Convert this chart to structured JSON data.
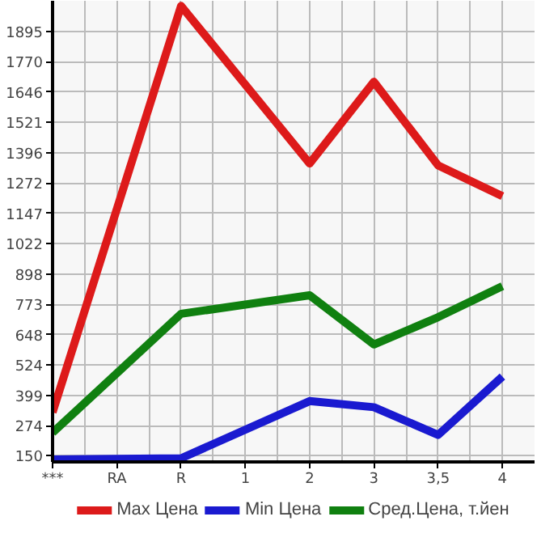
{
  "chart_data": {
    "type": "line",
    "categories": [
      "***",
      "RA",
      "R",
      "1",
      "2",
      "3",
      "3,5",
      "4"
    ],
    "series": [
      {
        "name": "Max Цена",
        "color": "#dd1a1a",
        "values": [
          329,
          null,
          2000,
          null,
          1352,
          1688,
          1344,
          1218
        ]
      },
      {
        "name": "Min Цена",
        "color": "#1a1ad0",
        "values": [
          135,
          null,
          140,
          null,
          375,
          350,
          236,
          476
        ]
      },
      {
        "name": "Сред.Цена, т.йен",
        "color": "#108010",
        "values": [
          245,
          null,
          734,
          null,
          810,
          608,
          720,
          848
        ]
      }
    ],
    "ylim": [
      125,
      2021
    ],
    "yticks": [
      150,
      274,
      399,
      524,
      648,
      773,
      898,
      1022,
      1147,
      1272,
      1396,
      1521,
      1646,
      1770,
      1895
    ],
    "grid": true,
    "legend": "bottom",
    "marker": "none",
    "line_style": "solid"
  }
}
